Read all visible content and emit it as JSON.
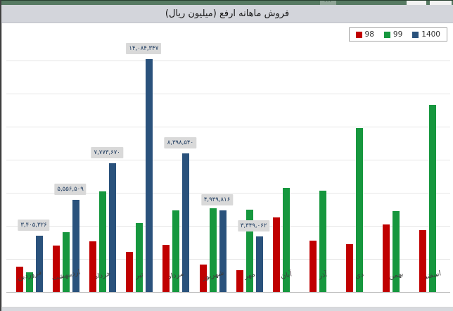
{
  "window": {
    "more_options_icon": "···"
  },
  "header": {
    "title": "فروش ماهانه ارفع (میلیون ریال)"
  },
  "legend": {
    "items": [
      {
        "label": "98",
        "color": "#c00000"
      },
      {
        "label": "99",
        "color": "#16973e"
      },
      {
        "label": "1400",
        "color": "#2a527c"
      }
    ]
  },
  "chart_data": {
    "type": "bar",
    "title": "فروش ماهانه ارفع (میلیون ریال)",
    "categories": [
      "فروردین",
      "اردیبهشت",
      "خرداد",
      "تیر",
      "مرداد",
      "شهریور",
      "مهر",
      "آبان",
      "آذر",
      "دی",
      "بهمن",
      "اسفند"
    ],
    "series": [
      {
        "name": "98",
        "color": "#c00000",
        "estimated": true,
        "values": [
          1550000,
          2800000,
          3050000,
          2430000,
          2870000,
          1650000,
          1340000,
          4520000,
          3110000,
          2890000,
          4100000,
          3740000
        ]
      },
      {
        "name": "99",
        "color": "#16973e",
        "estimated": true,
        "values": [
          1190000,
          3600000,
          6100000,
          4190000,
          4940000,
          5080000,
          4990000,
          6280000,
          6140000,
          9920000,
          4900000,
          11300000
        ]
      },
      {
        "name": "1400",
        "color": "#2a527c",
        "estimated": false,
        "values": [
          3405326,
          5556509,
          7773670,
          14084347,
          8398540,
          4949816,
          3349062,
          null,
          null,
          null,
          null,
          null
        ],
        "labels": [
          "۳,۴۰۵,۳۲۶",
          "۵,۵۵۶,۵۰۹",
          "۷,۷۷۳,۶۷۰",
          "۱۴,۰۸۴,۳۴۷",
          "۸,۳۹۸,۵۴۰",
          "۴,۹۴۹,۸۱۶",
          "۳,۳۴۹,۰۶۲",
          null,
          null,
          null,
          null,
          null
        ]
      }
    ],
    "ylim": [
      0,
      14800000
    ],
    "gridline_step": 2000000,
    "grid": true,
    "y_axis_labels_visible": false,
    "legend_position": "top-right",
    "data_label_bg": "#d9d9d9",
    "data_label_color": "#1d3a5f"
  }
}
